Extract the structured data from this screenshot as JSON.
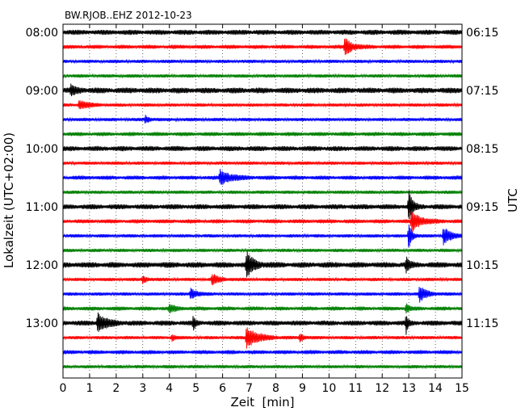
{
  "chart_data": {
    "type": "line",
    "title": "BW.RJOB..EHZ 2012-10-23",
    "xlabel": "Zeit  [min]",
    "ylabel_left": "Lokalzeit (UTC+02:00)",
    "ylabel_right": "UTC",
    "xlim": [
      0,
      15
    ],
    "x_ticks": [
      "0",
      "1",
      "2",
      "3",
      "4",
      "5",
      "6",
      "7",
      "8",
      "9",
      "10",
      "11",
      "12",
      "13",
      "14",
      "15"
    ],
    "grid": "vertical-dotted",
    "trace_colors": [
      "#000000",
      "#ff0000",
      "#0000ff",
      "#008000"
    ],
    "traces_count": 24,
    "left_time_labels": [
      "08:00",
      "09:00",
      "10:00",
      "11:00",
      "12:00",
      "13:00"
    ],
    "right_time_labels": [
      "06:15",
      "07:15",
      "08:15",
      "09:15",
      "10:15",
      "11:15"
    ],
    "events": [
      {
        "trace": 1,
        "minute": 10.6,
        "amplitude": 12,
        "width": 0.25
      },
      {
        "trace": 4,
        "minute": 0.3,
        "amplitude": 6,
        "width": 0.2
      },
      {
        "trace": 5,
        "minute": 0.6,
        "amplitude": 6,
        "width": 0.3
      },
      {
        "trace": 6,
        "minute": 3.1,
        "amplitude": 5,
        "width": 0.15
      },
      {
        "trace": 10,
        "minute": 5.9,
        "amplitude": 9,
        "width": 0.4
      },
      {
        "trace": 12,
        "minute": 13.0,
        "amplitude": 22,
        "width": 0.12
      },
      {
        "trace": 13,
        "minute": 13.1,
        "amplitude": 14,
        "width": 0.3
      },
      {
        "trace": 14,
        "minute": 13.0,
        "amplitude": 20,
        "width": 0.1
      },
      {
        "trace": 14,
        "minute": 14.3,
        "amplitude": 12,
        "width": 0.25
      },
      {
        "trace": 16,
        "minute": 6.9,
        "amplitude": 16,
        "width": 0.25
      },
      {
        "trace": 16,
        "minute": 12.9,
        "amplitude": 9,
        "width": 0.12
      },
      {
        "trace": 17,
        "minute": 3.0,
        "amplitude": 6,
        "width": 0.12
      },
      {
        "trace": 17,
        "minute": 5.6,
        "amplitude": 7,
        "width": 0.25
      },
      {
        "trace": 18,
        "minute": 4.8,
        "amplitude": 8,
        "width": 0.2
      },
      {
        "trace": 18,
        "minute": 13.4,
        "amplitude": 10,
        "width": 0.25
      },
      {
        "trace": 19,
        "minute": 4.0,
        "amplitude": 5,
        "width": 0.2
      },
      {
        "trace": 19,
        "minute": 12.9,
        "amplitude": 6,
        "width": 0.1
      },
      {
        "trace": 20,
        "minute": 1.3,
        "amplitude": 12,
        "width": 0.3
      },
      {
        "trace": 20,
        "minute": 4.9,
        "amplitude": 8,
        "width": 0.08
      },
      {
        "trace": 20,
        "minute": 12.9,
        "amplitude": 12,
        "width": 0.06
      },
      {
        "trace": 21,
        "minute": 6.9,
        "amplitude": 14,
        "width": 0.4
      },
      {
        "trace": 21,
        "minute": 4.1,
        "amplitude": 5,
        "width": 0.1
      },
      {
        "trace": 21,
        "minute": 8.9,
        "amplitude": 5,
        "width": 0.15
      }
    ]
  }
}
